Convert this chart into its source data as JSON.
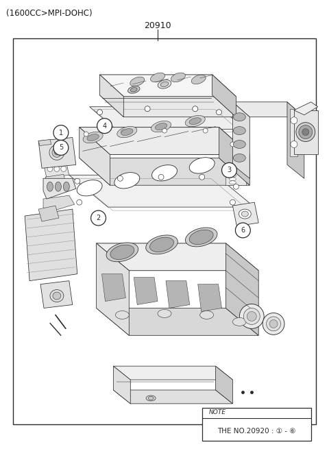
{
  "title_top_left": "(1600CC>MPI-DOHC)",
  "part_number_top": "20910",
  "note_line1": "NOTE",
  "note_line2": "THE NO.20920 : ① - ⑥",
  "background_color": "#ffffff",
  "border_color": "#333333",
  "text_color": "#1a1a1a",
  "fig_width": 4.8,
  "fig_height": 6.55,
  "dpi": 100,
  "line_color": "#2a2a2a",
  "lw": 0.55,
  "fill_light": "#f2f2f2",
  "fill_mid": "#e0e0e0",
  "fill_dark": "#c8c8c8",
  "fill_darker": "#aaaaaa"
}
